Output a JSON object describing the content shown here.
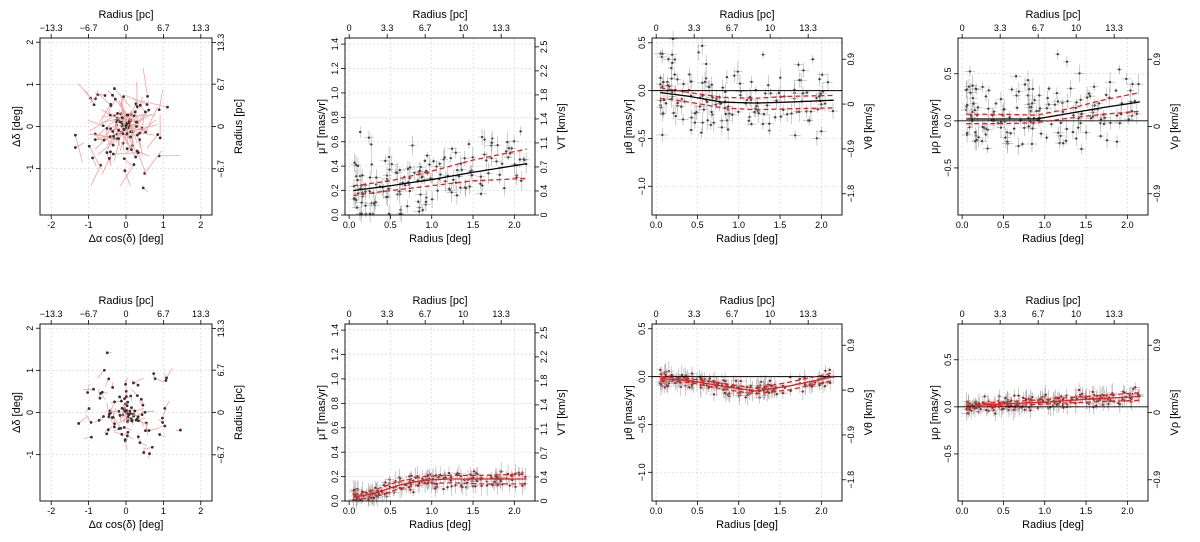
{
  "figure": "Proper motion vs radius panels",
  "chart_data": [
    {
      "type": "quiver",
      "row": 1,
      "col": 1,
      "xlabel": "Δα cos(δ) [deg]",
      "ylabel": "Δδ [deg]",
      "top_label": "Radius [pc]",
      "right_label": "Radius [pc]",
      "xlim": [
        -2.3,
        2.3
      ],
      "ylim": [
        -2.1,
        2.1
      ],
      "xticks": [
        -2,
        -1,
        0,
        1,
        2
      ],
      "yticks": [
        -1,
        0,
        1,
        2
      ],
      "top_ticks": [
        "−13.3",
        "−6.7",
        "0",
        "6.7",
        "13.3"
      ],
      "right_ticks": [
        "−6.7",
        "0",
        "6.7",
        "13.3"
      ]
    },
    {
      "type": "scatter",
      "row": 1,
      "col": 2,
      "xlabel": "Radius [deg]",
      "ylabel": "μT [mas/yr]",
      "top_label": "Radius [pc]",
      "right_label": "VT [km/s]",
      "xlim": [
        -0.05,
        2.25
      ],
      "ylim": [
        0,
        1.45
      ],
      "xticks": [
        "0.0",
        "0.5",
        "1.0",
        "1.5",
        "2.0"
      ],
      "yticks": [
        "0.0",
        "0.2",
        "0.4",
        "0.6",
        "0.8",
        "1.0",
        "1.2",
        "1.4"
      ],
      "top_ticks": [
        "0",
        "3.3",
        "6.7",
        "10",
        "13.3"
      ],
      "right_ticks": [
        "0",
        "0.4",
        "0.7",
        "1.1",
        "1.4",
        "1.8",
        "2.2",
        "2.5"
      ],
      "zero_line": false,
      "fit": {
        "x": [
          0.05,
          0.5,
          1.0,
          1.5,
          2.15
        ],
        "y": [
          0.2,
          0.24,
          0.29,
          0.35,
          0.42
        ]
      },
      "band_upper": {
        "x": [
          0.05,
          0.5,
          1.0,
          1.5,
          2.15
        ],
        "y": [
          0.24,
          0.28,
          0.36,
          0.45,
          0.54
        ]
      },
      "band_lower": {
        "x": [
          0.05,
          0.5,
          1.0,
          1.5,
          2.15
        ],
        "y": [
          0.16,
          0.2,
          0.24,
          0.28,
          0.3
        ]
      }
    },
    {
      "type": "scatter",
      "row": 1,
      "col": 3,
      "xlabel": "Radius [deg]",
      "ylabel": "μθ [mas/yr]",
      "top_label": "Radius [pc]",
      "right_label": "Vθ [km/s]",
      "xlim": [
        -0.05,
        2.25
      ],
      "ylim": [
        -1.3,
        0.55
      ],
      "xticks": [
        "0.0",
        "0.5",
        "1.0",
        "1.5",
        "2.0"
      ],
      "yticks": [
        "−1.0",
        "−0.5",
        "0.0",
        "0.5"
      ],
      "top_ticks": [
        "0",
        "3.3",
        "6.7",
        "10",
        "13.3"
      ],
      "right_ticks": [
        "−1.8",
        "−0.9",
        "0",
        "0.9"
      ],
      "zero_line": true,
      "fit": {
        "x": [
          0.05,
          0.4,
          0.8,
          1.2,
          1.6,
          2.15
        ],
        "y": [
          -0.02,
          -0.06,
          -0.12,
          -0.13,
          -0.12,
          -0.1
        ]
      },
      "band_upper": {
        "x": [
          0.05,
          0.4,
          0.8,
          1.2,
          1.6,
          2.15
        ],
        "y": [
          0.03,
          -0.02,
          -0.07,
          -0.08,
          -0.06,
          -0.05
        ]
      },
      "band_lower": {
        "x": [
          0.05,
          0.4,
          0.8,
          1.2,
          1.6,
          2.15
        ],
        "y": [
          -0.08,
          -0.12,
          -0.18,
          -0.2,
          -0.19,
          -0.18
        ]
      }
    },
    {
      "type": "scatter",
      "row": 1,
      "col": 4,
      "xlabel": "Radius [deg]",
      "ylabel": "μρ [mas/yr]",
      "top_label": "Radius [pc]",
      "right_label": "Vρ [km/s]",
      "xlim": [
        -0.05,
        2.25
      ],
      "ylim": [
        -1.0,
        0.88
      ],
      "xticks": [
        "0.0",
        "0.5",
        "1.0",
        "1.5",
        "2.0"
      ],
      "yticks": [
        "−0.5",
        "0.0",
        "0.5"
      ],
      "top_ticks": [
        "0",
        "3.3",
        "6.7",
        "10",
        "13.3"
      ],
      "right_ticks": [
        "−0.9",
        "0",
        "0.9"
      ],
      "zero_line": true,
      "fit": {
        "x": [
          0.05,
          0.5,
          0.9,
          1.3,
          1.7,
          2.15
        ],
        "y": [
          0.02,
          0.02,
          0.02,
          0.08,
          0.14,
          0.2
        ]
      },
      "band_upper": {
        "x": [
          0.05,
          0.5,
          0.9,
          1.3,
          1.7,
          2.15
        ],
        "y": [
          0.07,
          0.07,
          0.06,
          0.13,
          0.22,
          0.3
        ]
      },
      "band_lower": {
        "x": [
          0.05,
          0.5,
          0.9,
          1.3,
          1.7,
          2.15
        ],
        "y": [
          -0.03,
          -0.03,
          -0.02,
          0.03,
          0.07,
          0.1
        ]
      }
    },
    {
      "type": "quiver",
      "row": 2,
      "col": 1,
      "xlabel": "Δα cos(δ) [deg]",
      "ylabel": "Δδ [deg]",
      "top_label": "Radius [pc]",
      "right_label": "Radius [pc]",
      "xlim": [
        -2.3,
        2.3
      ],
      "ylim": [
        -2.1,
        2.1
      ],
      "xticks": [
        -2,
        -1,
        0,
        1,
        2
      ],
      "yticks": [
        -1,
        0,
        1,
        2
      ],
      "top_ticks": [
        "−13.3",
        "−6.7",
        "0",
        "6.7",
        "13.3"
      ],
      "right_ticks": [
        "−6.7",
        "0",
        "6.7",
        "13.3"
      ]
    },
    {
      "type": "scatter",
      "row": 2,
      "col": 2,
      "xlabel": "Radius [deg]",
      "ylabel": "μT [mas/yr]",
      "top_label": "Radius [pc]",
      "right_label": "VT [km/s]",
      "xlim": [
        -0.05,
        2.25
      ],
      "ylim": [
        0,
        1.45
      ],
      "xticks": [
        "0.0",
        "0.5",
        "1.0",
        "1.5",
        "2.0"
      ],
      "yticks": [
        "0.0",
        "0.2",
        "0.4",
        "0.6",
        "0.8",
        "1.0",
        "1.2",
        "1.4"
      ],
      "top_ticks": [
        "0",
        "3.3",
        "6.7",
        "10",
        "13.3"
      ],
      "right_ticks": [
        "0",
        "0.4",
        "0.7",
        "1.1",
        "1.4",
        "1.8",
        "2.2",
        "2.5"
      ],
      "zero_line": false,
      "fit": {
        "x": [
          0.05,
          0.3,
          0.6,
          0.9,
          1.2,
          1.6,
          2.15
        ],
        "y": [
          0.03,
          0.06,
          0.13,
          0.17,
          0.18,
          0.18,
          0.18
        ]
      },
      "band_upper": {
        "x": [
          0.05,
          0.3,
          0.6,
          0.9,
          1.2,
          1.6,
          2.15
        ],
        "y": [
          0.05,
          0.09,
          0.16,
          0.2,
          0.21,
          0.21,
          0.22
        ]
      },
      "band_lower": {
        "x": [
          0.05,
          0.3,
          0.6,
          0.9,
          1.2,
          1.6,
          2.15
        ],
        "y": [
          0.01,
          0.03,
          0.1,
          0.14,
          0.15,
          0.14,
          0.14
        ]
      }
    },
    {
      "type": "scatter",
      "row": 2,
      "col": 3,
      "xlabel": "Radius [deg]",
      "ylabel": "μθ [mas/yr]",
      "top_label": "Radius [pc]",
      "right_label": "Vθ [km/s]",
      "xlim": [
        -0.05,
        2.25
      ],
      "ylim": [
        -1.3,
        0.55
      ],
      "xticks": [
        "0.0",
        "0.5",
        "1.0",
        "1.5",
        "2.0"
      ],
      "yticks": [
        "−1.0",
        "−0.5",
        "0.0",
        "0.5"
      ],
      "top_ticks": [
        "0",
        "3.3",
        "6.7",
        "10",
        "13.3"
      ],
      "right_ticks": [
        "−1.8",
        "−0.9",
        "0",
        "0.9"
      ],
      "zero_line": true,
      "fit": {
        "x": [
          0.05,
          0.4,
          0.8,
          1.2,
          1.6,
          2.15
        ],
        "y": [
          -0.02,
          -0.04,
          -0.1,
          -0.15,
          -0.1,
          0.0
        ]
      },
      "band_upper": {
        "x": [
          0.05,
          0.4,
          0.8,
          1.2,
          1.6,
          2.15
        ],
        "y": [
          0.0,
          -0.02,
          -0.07,
          -0.12,
          -0.06,
          0.04
        ]
      },
      "band_lower": {
        "x": [
          0.05,
          0.4,
          0.8,
          1.2,
          1.6,
          2.15
        ],
        "y": [
          -0.04,
          -0.06,
          -0.13,
          -0.18,
          -0.14,
          -0.04
        ]
      }
    },
    {
      "type": "scatter",
      "row": 2,
      "col": 4,
      "xlabel": "Radius [deg]",
      "ylabel": "μρ [mas/yr]",
      "top_label": "Radius [pc]",
      "right_label": "Vρ [km/s]",
      "xlim": [
        -0.05,
        2.25
      ],
      "ylim": [
        -1.0,
        0.88
      ],
      "xticks": [
        "0.0",
        "0.5",
        "1.0",
        "1.5",
        "2.0"
      ],
      "yticks": [
        "−0.5",
        "0.0",
        "0.5"
      ],
      "top_ticks": [
        "0",
        "3.3",
        "6.7",
        "10",
        "13.3"
      ],
      "right_ticks": [
        "−0.9",
        "0",
        "0.9"
      ],
      "zero_line": true,
      "fit": {
        "x": [
          0.05,
          0.5,
          1.0,
          1.5,
          2.15
        ],
        "y": [
          0.01,
          0.03,
          0.05,
          0.08,
          0.11
        ]
      },
      "band_upper": {
        "x": [
          0.05,
          0.5,
          1.0,
          1.5,
          2.15
        ],
        "y": [
          0.03,
          0.05,
          0.08,
          0.11,
          0.15
        ]
      },
      "band_lower": {
        "x": [
          0.05,
          0.5,
          1.0,
          1.5,
          2.15
        ],
        "y": [
          -0.01,
          0.01,
          0.03,
          0.05,
          0.07
        ]
      }
    }
  ]
}
